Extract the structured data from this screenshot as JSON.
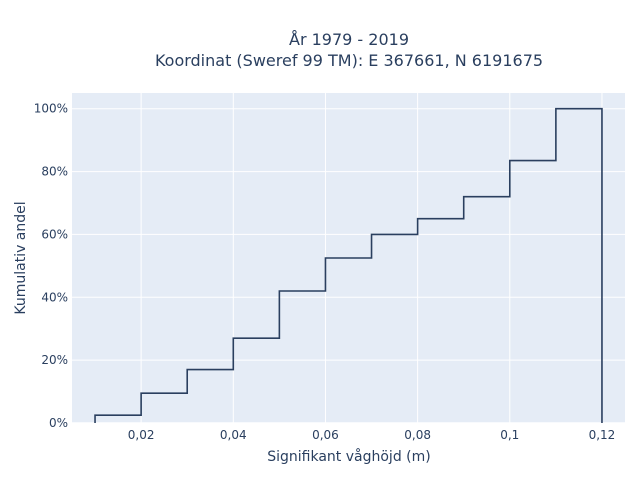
{
  "chart_data": {
    "type": "line",
    "line_shape": "step",
    "title_line1": "År 1979 - 2019",
    "title_line2": "Koordinat (Sweref 99 TM): E 367661, N 6191675",
    "xlabel": "Signifikant våghöjd (m)",
    "ylabel": "Kumulativ andel",
    "xlim": [
      0.005,
      0.125
    ],
    "ylim": [
      0,
      1.05
    ],
    "x_ticks": [
      {
        "value": 0.02,
        "label": "0,02"
      },
      {
        "value": 0.04,
        "label": "0,04"
      },
      {
        "value": 0.06,
        "label": "0,06"
      },
      {
        "value": 0.08,
        "label": "0,08"
      },
      {
        "value": 0.1,
        "label": "0,1"
      },
      {
        "value": 0.12,
        "label": "0,12"
      }
    ],
    "y_ticks": [
      {
        "value": 0,
        "label": "0%"
      },
      {
        "value": 0.2,
        "label": "20%"
      },
      {
        "value": 0.4,
        "label": "40%"
      },
      {
        "value": 0.6,
        "label": "60%"
      },
      {
        "value": 0.8,
        "label": "80%"
      },
      {
        "value": 1.0,
        "label": "100%"
      }
    ],
    "x": [
      0.01,
      0.02,
      0.03,
      0.04,
      0.05,
      0.06,
      0.07,
      0.08,
      0.09,
      0.1,
      0.11,
      0.12
    ],
    "y": [
      0.025,
      0.095,
      0.17,
      0.27,
      0.42,
      0.525,
      0.6,
      0.65,
      0.72,
      0.835,
      1.0,
      0.0
    ],
    "grid": true,
    "colors": {
      "plot_bg": "#e5ecf6",
      "grid": "#ffffff",
      "line": "#2a3f5f",
      "text": "#2a3f5f"
    }
  }
}
